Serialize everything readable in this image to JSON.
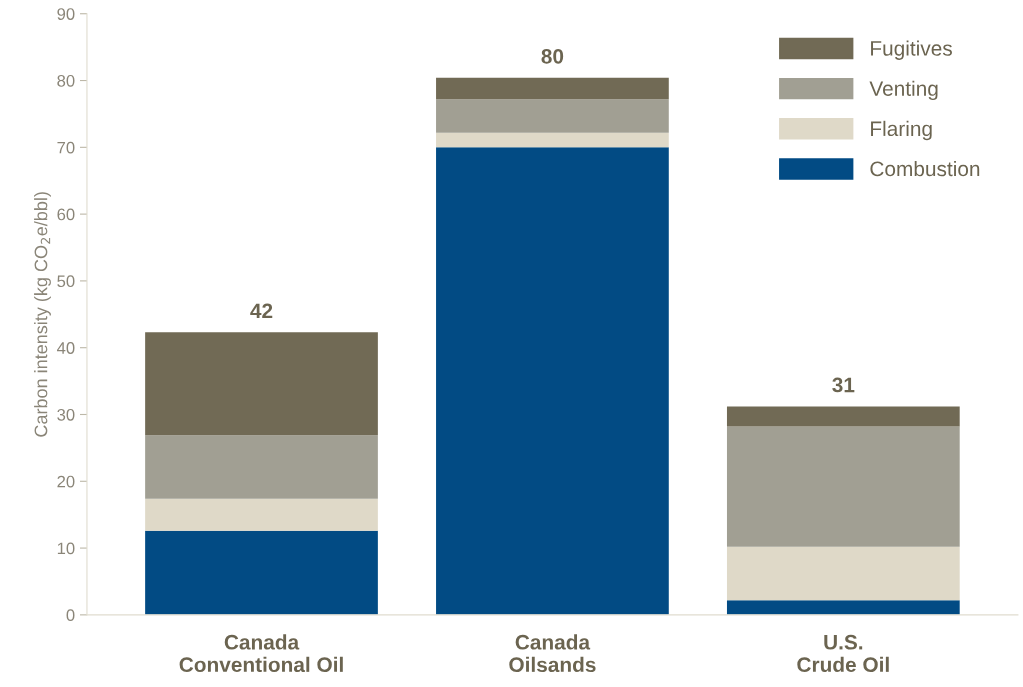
{
  "chart_data": {
    "type": "bar",
    "stacked": true,
    "ylabel": "Carbon intensity (kg CO$_{2}$e/bbl)",
    "categories": [
      "Canada\nConventional Oil",
      "Canada\nOilsands",
      "U.S.\nCrude Oil"
    ],
    "series": [
      {
        "name": "Combustion",
        "color": "#024b84",
        "values": [
          12.6,
          70.0,
          2.2
        ]
      },
      {
        "name": "Flaring",
        "color": "#dfd9c8",
        "values": [
          4.8,
          2.2,
          8.0
        ]
      },
      {
        "name": "Venting",
        "color": "#a19f93",
        "values": [
          9.5,
          5.0,
          18.0
        ]
      },
      {
        "name": "Fugitives",
        "color": "#716a55",
        "values": [
          15.4,
          3.2,
          3.0
        ]
      }
    ],
    "totals": [
      "42",
      "80",
      "31"
    ],
    "ylim": [
      0,
      90
    ],
    "yticks": [
      0,
      10,
      20,
      30,
      40,
      50,
      60,
      70,
      80,
      90
    ],
    "grid": false,
    "legend": "top right"
  }
}
